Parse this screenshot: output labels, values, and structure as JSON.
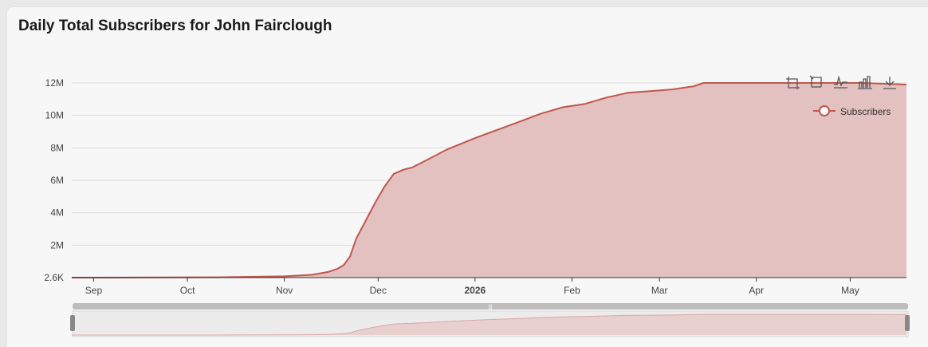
{
  "header": {
    "title": "Daily Total Subscribers for John Fairclough"
  },
  "toolbar": {
    "icons": [
      "zoom-icon",
      "zoom-reset-icon",
      "line-chart-icon",
      "bar-chart-icon",
      "download-icon"
    ]
  },
  "colors": {
    "line": "#c0574f",
    "area": "#e3c1c0",
    "grid": "#dcdcdc",
    "axis": "#333333"
  },
  "chart_data": {
    "type": "area",
    "series": [
      {
        "name": "Subscribers",
        "x": [
          "2025-08-25",
          "2025-09-15",
          "2025-10-10",
          "2025-11-01",
          "2025-11-10",
          "2025-11-15",
          "2025-11-18",
          "2025-11-20",
          "2025-11-22",
          "2025-11-24",
          "2025-11-27",
          "2025-11-30",
          "2025-12-03",
          "2025-12-06",
          "2025-12-09",
          "2025-12-12",
          "2025-12-18",
          "2025-12-23",
          "2026-01-01",
          "2026-01-08",
          "2026-01-15",
          "2026-01-22",
          "2026-01-29",
          "2026-02-05",
          "2026-02-12",
          "2026-02-19",
          "2026-02-26",
          "2026-03-05",
          "2026-03-12",
          "2026-03-15",
          "2026-03-25",
          "2026-04-05",
          "2026-04-20",
          "2026-05-05",
          "2026-05-19"
        ],
        "y": [
          2600,
          6000,
          20000,
          80000,
          180000,
          350000,
          550000,
          780000,
          1300000,
          2400000,
          3500000,
          4600000,
          5600000,
          6400000,
          6650000,
          6800000,
          7400000,
          7900000,
          8600000,
          9100000,
          9600000,
          10100000,
          10500000,
          10700000,
          11100000,
          11400000,
          11500000,
          11600000,
          11800000,
          12000000,
          12000000,
          12000000,
          12000000,
          12000000,
          11900000
        ]
      }
    ],
    "x_ticks": [
      "Sep",
      "Oct",
      "Nov",
      "Dec",
      "2026",
      "Feb",
      "Mar",
      "Apr",
      "May"
    ],
    "y_ticks": [
      "2.6K",
      "2M",
      "4M",
      "6M",
      "8M",
      "10M",
      "12M"
    ],
    "y_tick_values": [
      2600,
      2000000,
      4000000,
      6000000,
      8000000,
      10000000,
      12000000
    ],
    "xlim": [
      "2025-08-25",
      "2026-05-19"
    ],
    "ylim": [
      2600,
      12000000
    ],
    "grid": true,
    "legend": "top-right"
  }
}
